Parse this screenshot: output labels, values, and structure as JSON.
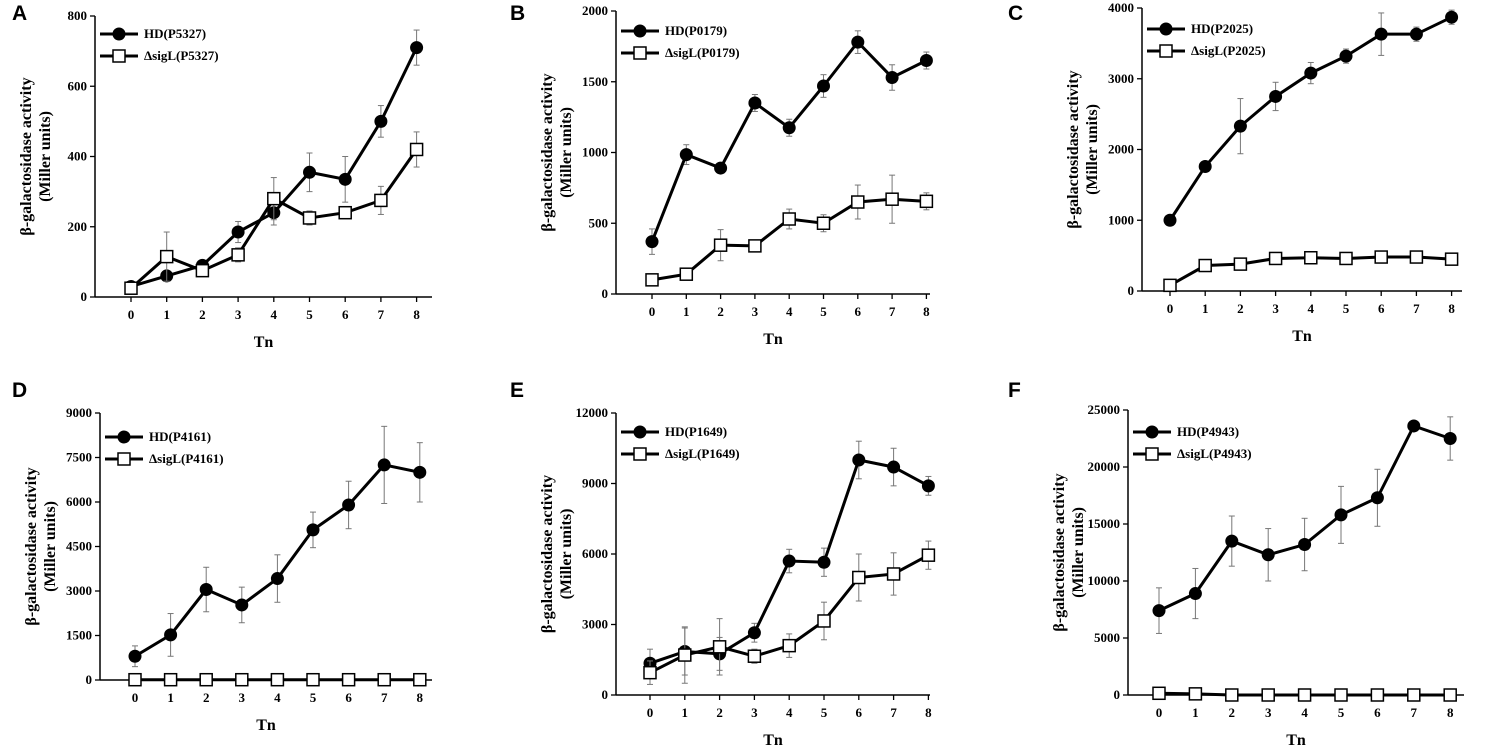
{
  "chart_data": [
    {
      "panel": "A",
      "type": "line",
      "title": "",
      "xlabel": "Tn",
      "ylabel": [
        "β-galactosidase activity",
        "(Miller units)"
      ],
      "categories": [
        "0",
        "1",
        "2",
        "3",
        "4",
        "5",
        "6",
        "7",
        "8"
      ],
      "yticks": [
        "0",
        "200",
        "400",
        "600",
        "800"
      ],
      "ylim": [
        0,
        800
      ],
      "series": [
        {
          "name": "HD(P5327)",
          "marker": "filled-circle",
          "values": [
            30,
            60,
            90,
            185,
            240,
            355,
            335,
            500,
            710
          ],
          "errors": [
            15,
            10,
            15,
            30,
            35,
            55,
            65,
            45,
            50
          ]
        },
        {
          "name": "ΔsigL(P5327)",
          "marker": "open-square",
          "values": [
            25,
            115,
            75,
            120,
            280,
            225,
            240,
            275,
            420
          ],
          "errors": [
            10,
            70,
            15,
            20,
            60,
            20,
            10,
            40,
            50
          ]
        }
      ]
    },
    {
      "panel": "B",
      "type": "line",
      "title": "",
      "xlabel": "Tn",
      "ylabel": [
        "β-galactosidase activity",
        "(Miller units)"
      ],
      "categories": [
        "0",
        "1",
        "2",
        "3",
        "4",
        "5",
        "6",
        "7",
        "8"
      ],
      "yticks": [
        "0",
        "500",
        "1000",
        "1500",
        "2000"
      ],
      "ylim": [
        0,
        2000
      ],
      "series": [
        {
          "name": "HD(P0179)",
          "marker": "filled-circle",
          "values": [
            370,
            985,
            890,
            1350,
            1175,
            1470,
            1780,
            1530,
            1650
          ],
          "errors": [
            90,
            70,
            30,
            60,
            60,
            80,
            80,
            90,
            60
          ]
        },
        {
          "name": "ΔsigL(P0179)",
          "marker": "open-square",
          "values": [
            100,
            140,
            345,
            340,
            530,
            500,
            650,
            670,
            655
          ],
          "errors": [
            30,
            30,
            110,
            20,
            70,
            60,
            120,
            170,
            60
          ]
        }
      ]
    },
    {
      "panel": "C",
      "type": "line",
      "title": "",
      "xlabel": "Tn",
      "ylabel": [
        "β-galactosidase activity",
        "(Miller units)"
      ],
      "categories": [
        "0",
        "1",
        "2",
        "3",
        "4",
        "5",
        "6",
        "7",
        "8"
      ],
      "yticks": [
        "0",
        "1000",
        "2000",
        "3000",
        "4000"
      ],
      "ylim": [
        0,
        4000
      ],
      "series": [
        {
          "name": "HD(P2025)",
          "marker": "filled-circle",
          "values": [
            1000,
            1760,
            2330,
            2750,
            3080,
            3320,
            3630,
            3630,
            3870
          ],
          "errors": [
            40,
            70,
            390,
            200,
            150,
            100,
            300,
            100,
            100
          ]
        },
        {
          "name": "ΔsigL(P2025)",
          "marker": "open-square",
          "values": [
            80,
            360,
            380,
            460,
            470,
            460,
            480,
            480,
            450
          ],
          "errors": [
            80,
            60,
            70,
            50,
            60,
            50,
            60,
            60,
            60
          ]
        }
      ]
    },
    {
      "panel": "D",
      "type": "line",
      "title": "",
      "xlabel": "Tn",
      "ylabel": [
        "β-galactosidase activity",
        "(Miller units)"
      ],
      "categories": [
        "0",
        "1",
        "2",
        "3",
        "4",
        "5",
        "6",
        "7",
        "8"
      ],
      "yticks": [
        "0",
        "1500",
        "3000",
        "4500",
        "6000",
        "7500",
        "9000"
      ],
      "ylim": [
        0,
        9000
      ],
      "series": [
        {
          "name": "HD(P4161)",
          "marker": "filled-circle",
          "values": [
            800,
            1520,
            3050,
            2530,
            3420,
            5060,
            5900,
            7250,
            7000
          ],
          "errors": [
            350,
            720,
            750,
            600,
            800,
            600,
            800,
            1300,
            1000
          ]
        },
        {
          "name": "ΔsigL(P4161)",
          "marker": "open-square",
          "values": [
            10,
            10,
            10,
            10,
            10,
            10,
            10,
            10,
            10
          ],
          "errors": [
            150,
            150,
            150,
            150,
            150,
            150,
            150,
            150,
            150
          ]
        }
      ]
    },
    {
      "panel": "E",
      "type": "line",
      "title": "",
      "xlabel": "Tn",
      "ylabel": [
        "β-galactosidase activity",
        "(Miller units)"
      ],
      "categories": [
        "0",
        "1",
        "2",
        "3",
        "4",
        "5",
        "6",
        "7",
        "8"
      ],
      "yticks": [
        "0",
        "3000",
        "6000",
        "9000",
        "12000"
      ],
      "ylim": [
        0,
        12000
      ],
      "series": [
        {
          "name": "HD(P1649)",
          "marker": "filled-circle",
          "values": [
            1350,
            1850,
            1750,
            2650,
            5700,
            5650,
            10000,
            9700,
            8900
          ],
          "errors": [
            600,
            1000,
            700,
            400,
            500,
            600,
            800,
            800,
            400
          ]
        },
        {
          "name": "ΔsigL(P1649)",
          "marker": "open-square",
          "values": [
            950,
            1700,
            2050,
            1650,
            2100,
            3150,
            5000,
            5150,
            5950
          ],
          "errors": [
            500,
            1200,
            1200,
            300,
            500,
            800,
            1000,
            900,
            600
          ]
        }
      ]
    },
    {
      "panel": "F",
      "type": "line",
      "title": "",
      "xlabel": "Tn",
      "ylabel": [
        "β-galactosidase activity",
        "(Miller units)"
      ],
      "categories": [
        "0",
        "1",
        "2",
        "3",
        "4",
        "5",
        "6",
        "7",
        "8"
      ],
      "yticks": [
        "0",
        "5000",
        "10000",
        "15000",
        "20000",
        "25000"
      ],
      "ylim": [
        0,
        25000
      ],
      "series": [
        {
          "name": "HD(P4943)",
          "marker": "filled-circle",
          "values": [
            7400,
            8900,
            13500,
            12300,
            13200,
            15800,
            17300,
            23600,
            22500
          ],
          "errors": [
            2000,
            2200,
            2200,
            2300,
            2300,
            2500,
            2500,
            300,
            1900
          ]
        },
        {
          "name": "ΔsigL(P4943)",
          "marker": "open-square",
          "values": [
            150,
            100,
            0,
            0,
            0,
            0,
            0,
            0,
            0
          ],
          "errors": [
            0,
            0,
            0,
            0,
            0,
            0,
            0,
            0,
            0
          ]
        }
      ]
    }
  ]
}
